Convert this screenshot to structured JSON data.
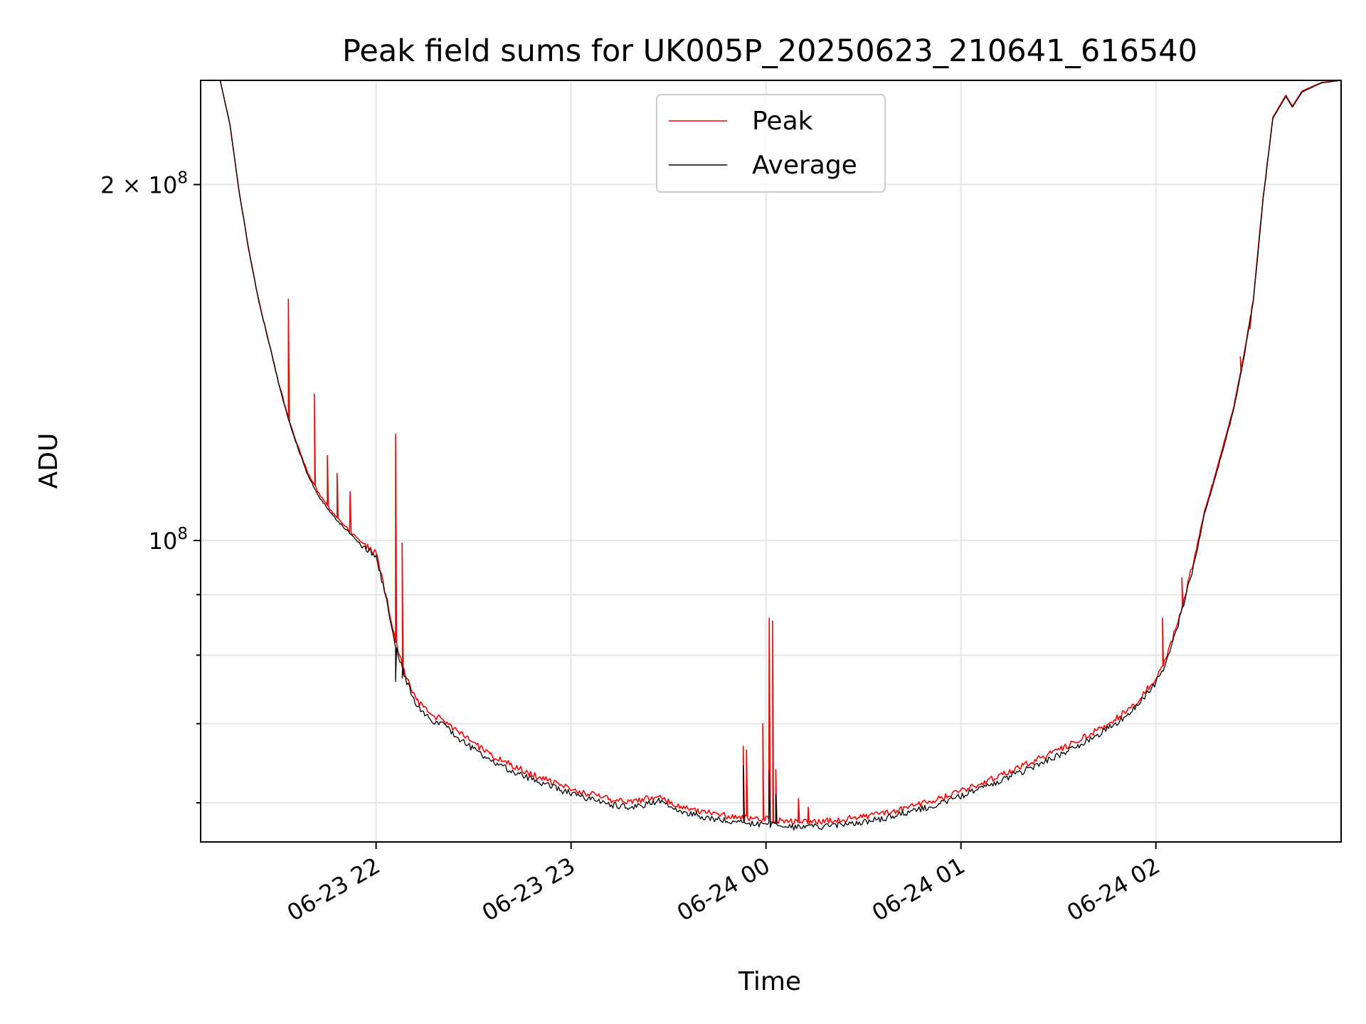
{
  "chart_data": {
    "type": "line",
    "title": "Peak field sums for UK005P_20250623_210641_616540",
    "xlabel": "Time",
    "ylabel": "ADU",
    "yscale": "log",
    "grid": true,
    "legend_position": "upper center",
    "xlim": [
      "2025-06-23 21:06",
      "2025-06-24 02:57"
    ],
    "ylim": [
      55600000,
      245000000
    ],
    "x_ticks": [
      {
        "value": "2025-06-23 22:00",
        "label": "06-23 22"
      },
      {
        "value": "2025-06-23 23:00",
        "label": "06-23 23"
      },
      {
        "value": "2025-06-24 00:00",
        "label": "06-24 00"
      },
      {
        "value": "2025-06-24 01:00",
        "label": "06-24 01"
      },
      {
        "value": "2025-06-24 02:00",
        "label": "06-24 02"
      }
    ],
    "y_ticks": [
      {
        "value": 100000000,
        "base": "10",
        "exp": "8",
        "mult": ""
      },
      {
        "value": 200000000,
        "base": "10",
        "exp": "8",
        "mult": "2 × "
      }
    ],
    "y_minor_ticks": [
      60000000,
      70000000,
      80000000,
      90000000
    ],
    "series": [
      {
        "name": "Peak",
        "color": "#ff0000",
        "points": [
          [
            "2025-06-23 21:06",
            245000000
          ],
          [
            "2025-06-23 21:12",
            245000000
          ],
          [
            "2025-06-23 21:15",
            225000000
          ],
          [
            "2025-06-23 21:18",
            196000000
          ],
          [
            "2025-06-23 21:21",
            175000000
          ],
          [
            "2025-06-23 21:24",
            159000000
          ],
          [
            "2025-06-23 21:27",
            147000000
          ],
          [
            "2025-06-23 21:30",
            136000000
          ],
          [
            "2025-06-23 21:33",
            127000000
          ],
          [
            "2025-06-23 21:36",
            120000000
          ],
          [
            "2025-06-23 21:39",
            114000000
          ],
          [
            "2025-06-23 21:42",
            110000000
          ],
          [
            "2025-06-23 21:45",
            107000000
          ],
          [
            "2025-06-23 21:48",
            104500000
          ],
          [
            "2025-06-23 21:51",
            102500000
          ],
          [
            "2025-06-23 21:54",
            100500000
          ],
          [
            "2025-06-23 21:57",
            99000000
          ],
          [
            "2025-06-23 22:00",
            97500000
          ],
          [
            "2025-06-23 22:03",
            90000000
          ],
          [
            "2025-06-23 22:06",
            82000000
          ],
          [
            "2025-06-23 22:09",
            77000000
          ],
          [
            "2025-06-23 22:12",
            73500000
          ],
          [
            "2025-06-23 22:15",
            72000000
          ],
          [
            "2025-06-23 22:18",
            71000000
          ],
          [
            "2025-06-23 22:21",
            70500000
          ],
          [
            "2025-06-23 22:24",
            69300000
          ],
          [
            "2025-06-23 22:30",
            67400000
          ],
          [
            "2025-06-23 22:36",
            65700000
          ],
          [
            "2025-06-23 22:42",
            64500000
          ],
          [
            "2025-06-23 22:48",
            63400000
          ],
          [
            "2025-06-23 22:54",
            62500000
          ],
          [
            "2025-06-23 23:00",
            61700000
          ],
          [
            "2025-06-23 23:06",
            61000000
          ],
          [
            "2025-06-23 23:12",
            60400000
          ],
          [
            "2025-06-23 23:18",
            60100000
          ],
          [
            "2025-06-23 23:24",
            60500000
          ],
          [
            "2025-06-23 23:27",
            61000000
          ],
          [
            "2025-06-23 23:30",
            60200000
          ],
          [
            "2025-06-23 23:36",
            59400000
          ],
          [
            "2025-06-23 23:42",
            58900000
          ],
          [
            "2025-06-23 23:48",
            58500000
          ],
          [
            "2025-06-23 23:54",
            58300000
          ],
          [
            "2025-06-24 00:00",
            58100000
          ],
          [
            "2025-06-24 00:06",
            57900000
          ],
          [
            "2025-06-24 00:12",
            57800000
          ],
          [
            "2025-06-24 00:18",
            57900000
          ],
          [
            "2025-06-24 00:24",
            58100000
          ],
          [
            "2025-06-24 00:30",
            58400000
          ],
          [
            "2025-06-24 00:36",
            58800000
          ],
          [
            "2025-06-24 00:42",
            59300000
          ],
          [
            "2025-06-24 00:48",
            59900000
          ],
          [
            "2025-06-24 00:54",
            60600000
          ],
          [
            "2025-06-24 01:00",
            61400000
          ],
          [
            "2025-06-24 01:06",
            62300000
          ],
          [
            "2025-06-24 01:12",
            63300000
          ],
          [
            "2025-06-24 01:18",
            64300000
          ],
          [
            "2025-06-24 01:24",
            65400000
          ],
          [
            "2025-06-24 01:30",
            66500000
          ],
          [
            "2025-06-24 01:36",
            67700000
          ],
          [
            "2025-06-24 01:42",
            69100000
          ],
          [
            "2025-06-24 01:48",
            70800000
          ],
          [
            "2025-06-24 01:54",
            73000000
          ],
          [
            "2025-06-24 02:00",
            76500000
          ],
          [
            "2025-06-24 02:03",
            79500000
          ],
          [
            "2025-06-24 02:06",
            84000000
          ],
          [
            "2025-06-24 02:09",
            90000000
          ],
          [
            "2025-06-24 02:12",
            97000000
          ],
          [
            "2025-06-24 02:15",
            106000000
          ],
          [
            "2025-06-24 02:18",
            113000000
          ],
          [
            "2025-06-24 02:21",
            121000000
          ],
          [
            "2025-06-24 02:24",
            130000000
          ],
          [
            "2025-06-24 02:27",
            143000000
          ],
          [
            "2025-06-24 02:30",
            160000000
          ],
          [
            "2025-06-24 02:33",
            195000000
          ],
          [
            "2025-06-24 02:36",
            228000000
          ],
          [
            "2025-06-24 02:40",
            238000000
          ],
          [
            "2025-06-24 02:42",
            233000000
          ],
          [
            "2025-06-24 02:45",
            240000000
          ],
          [
            "2025-06-24 02:51",
            244000000
          ],
          [
            "2025-06-24 02:57",
            245000000
          ]
        ],
        "spikes": [
          [
            "2025-06-23 21:33",
            160000000
          ],
          [
            "2025-06-23 21:41",
            133000000
          ],
          [
            "2025-06-23 21:45",
            118000000
          ],
          [
            "2025-06-23 21:48",
            114000000
          ],
          [
            "2025-06-23 21:52",
            110000000
          ],
          [
            "2025-06-23 22:06",
            123000000
          ],
          [
            "2025-06-23 22:08",
            99500000
          ],
          [
            "2025-06-23 22:35",
            66000000
          ],
          [
            "2025-06-23 23:53",
            67000000
          ],
          [
            "2025-06-23 23:54",
            66500000
          ],
          [
            "2025-06-23 23:59",
            70000000
          ],
          [
            "2025-06-24 00:01",
            86000000
          ],
          [
            "2025-06-24 00:02",
            85500000
          ],
          [
            "2025-06-24 00:03",
            64000000
          ],
          [
            "2025-06-24 00:10",
            60500000
          ],
          [
            "2025-06-24 00:13",
            59500000
          ],
          [
            "2025-06-24 02:02",
            86000000
          ],
          [
            "2025-06-24 02:08",
            93000000
          ],
          [
            "2025-06-24 02:26",
            143000000
          ],
          [
            "2025-06-24 02:29",
            151000000
          ]
        ]
      },
      {
        "name": "Average",
        "color": "#000000",
        "points": [
          [
            "2025-06-23 21:06",
            245000000
          ],
          [
            "2025-06-23 21:12",
            245000000
          ],
          [
            "2025-06-23 21:15",
            225000000
          ],
          [
            "2025-06-23 21:18",
            196000000
          ],
          [
            "2025-06-23 21:21",
            175000000
          ],
          [
            "2025-06-23 21:24",
            159000000
          ],
          [
            "2025-06-23 21:27",
            147000000
          ],
          [
            "2025-06-23 21:30",
            136000000
          ],
          [
            "2025-06-23 21:33",
            126500000
          ],
          [
            "2025-06-23 21:36",
            119500000
          ],
          [
            "2025-06-23 21:39",
            113500000
          ],
          [
            "2025-06-23 21:42",
            109500000
          ],
          [
            "2025-06-23 21:45",
            106500000
          ],
          [
            "2025-06-23 21:48",
            104000000
          ],
          [
            "2025-06-23 21:51",
            102000000
          ],
          [
            "2025-06-23 21:54",
            100000000
          ],
          [
            "2025-06-23 21:57",
            98500000
          ],
          [
            "2025-06-23 22:00",
            97000000
          ],
          [
            "2025-06-23 22:03",
            89500000
          ],
          [
            "2025-06-23 22:06",
            81500000
          ],
          [
            "2025-06-23 22:09",
            76500000
          ],
          [
            "2025-06-23 22:12",
            73000000
          ],
          [
            "2025-06-23 22:15",
            71300000
          ],
          [
            "2025-06-23 22:18",
            70300000
          ],
          [
            "2025-06-23 22:21",
            69700000
          ],
          [
            "2025-06-23 22:24",
            68500000
          ],
          [
            "2025-06-23 22:30",
            66600000
          ],
          [
            "2025-06-23 22:36",
            65000000
          ],
          [
            "2025-06-23 22:42",
            63800000
          ],
          [
            "2025-06-23 22:48",
            62800000
          ],
          [
            "2025-06-23 22:54",
            61900000
          ],
          [
            "2025-06-23 23:00",
            61100000
          ],
          [
            "2025-06-23 23:06",
            60400000
          ],
          [
            "2025-06-23 23:12",
            59800000
          ],
          [
            "2025-06-23 23:18",
            59500000
          ],
          [
            "2025-06-23 23:24",
            59900000
          ],
          [
            "2025-06-23 23:27",
            60300000
          ],
          [
            "2025-06-23 23:30",
            59600000
          ],
          [
            "2025-06-23 23:36",
            58800000
          ],
          [
            "2025-06-23 23:42",
            58300000
          ],
          [
            "2025-06-23 23:48",
            57900000
          ],
          [
            "2025-06-23 23:54",
            57700000
          ],
          [
            "2025-06-24 00:00",
            57500000
          ],
          [
            "2025-06-24 00:06",
            57300000
          ],
          [
            "2025-06-24 00:12",
            57200000
          ],
          [
            "2025-06-24 00:18",
            57300000
          ],
          [
            "2025-06-24 00:24",
            57500000
          ],
          [
            "2025-06-24 00:30",
            57800000
          ],
          [
            "2025-06-24 00:36",
            58200000
          ],
          [
            "2025-06-24 00:42",
            58700000
          ],
          [
            "2025-06-24 00:48",
            59300000
          ],
          [
            "2025-06-24 00:54",
            60000000
          ],
          [
            "2025-06-24 01:00",
            60800000
          ],
          [
            "2025-06-24 01:06",
            61700000
          ],
          [
            "2025-06-24 01:12",
            62600000
          ],
          [
            "2025-06-24 01:18",
            63600000
          ],
          [
            "2025-06-24 01:24",
            64700000
          ],
          [
            "2025-06-24 01:30",
            65800000
          ],
          [
            "2025-06-24 01:36",
            67000000
          ],
          [
            "2025-06-24 01:42",
            68400000
          ],
          [
            "2025-06-24 01:48",
            70100000
          ],
          [
            "2025-06-24 01:54",
            72300000
          ],
          [
            "2025-06-24 02:00",
            75800000
          ],
          [
            "2025-06-24 02:03",
            78800000
          ],
          [
            "2025-06-24 02:06",
            83300000
          ],
          [
            "2025-06-24 02:09",
            89300000
          ],
          [
            "2025-06-24 02:12",
            96300000
          ],
          [
            "2025-06-24 02:15",
            105300000
          ],
          [
            "2025-06-24 02:18",
            112300000
          ],
          [
            "2025-06-24 02:21",
            120300000
          ],
          [
            "2025-06-24 02:24",
            129300000
          ],
          [
            "2025-06-24 02:27",
            142300000
          ],
          [
            "2025-06-24 02:30",
            159300000
          ],
          [
            "2025-06-24 02:33",
            194500000
          ],
          [
            "2025-06-24 02:36",
            227500000
          ],
          [
            "2025-06-24 02:40",
            237500000
          ],
          [
            "2025-06-24 02:42",
            232500000
          ],
          [
            "2025-06-24 02:45",
            239500000
          ],
          [
            "2025-06-24 02:51",
            243800000
          ],
          [
            "2025-06-24 02:57",
            245000000
          ]
        ],
        "spikes": [
          [
            "2025-06-23 22:06",
            76000000
          ],
          [
            "2025-06-23 22:08",
            76500000
          ],
          [
            "2025-06-23 23:53",
            64500000
          ],
          [
            "2025-06-24 00:01",
            64000000
          ],
          [
            "2025-06-24 00:03",
            61000000
          ],
          [
            "2025-06-24 02:02",
            77500000
          ]
        ]
      }
    ]
  }
}
